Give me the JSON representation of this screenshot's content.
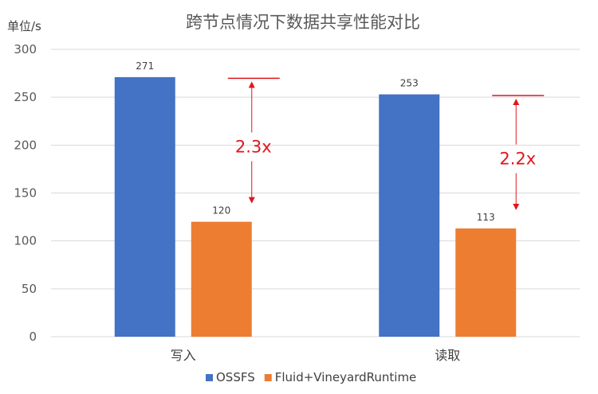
{
  "chart_data": {
    "type": "bar",
    "title": "跨节点情况下数据共享性能对比",
    "ylabel": "单位/s",
    "ylim": [
      0,
      300
    ],
    "yticks": [
      0,
      50,
      100,
      150,
      200,
      250,
      300
    ],
    "grid": true,
    "legend_position": "bottom",
    "categories": [
      "写入",
      "读取"
    ],
    "series": [
      {
        "name": "OSSFS",
        "color": "#4472c4",
        "values": [
          271,
          253
        ]
      },
      {
        "name": "Fluid+VineyardRuntime",
        "color": "#ed7d31",
        "values": [
          120,
          113
        ]
      }
    ],
    "annotations": [
      {
        "category": "写入",
        "text": "2.3x",
        "color": "#e0161d"
      },
      {
        "category": "读取",
        "text": "2.2x",
        "color": "#e0161d"
      }
    ]
  }
}
